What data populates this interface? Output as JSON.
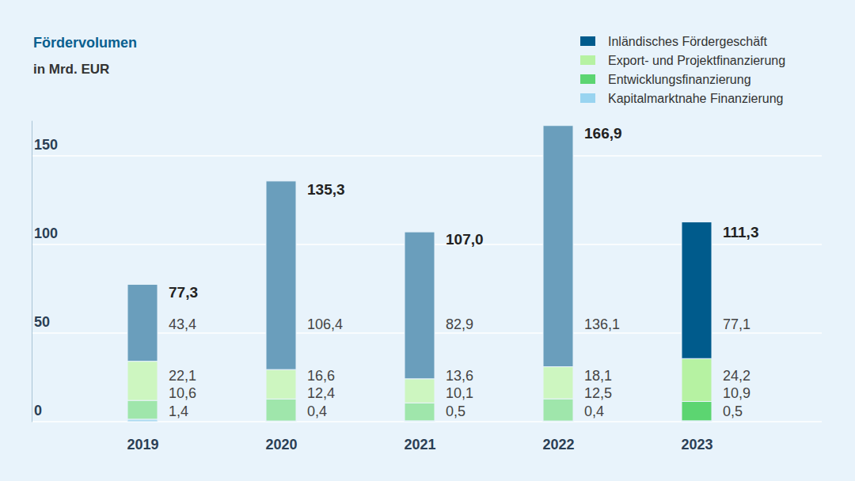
{
  "chart_data": {
    "type": "bar",
    "title": "Fördervolumen",
    "subtitle": "in Mrd. EUR",
    "categories": [
      "2019",
      "2020",
      "2021",
      "2022",
      "2023"
    ],
    "stacked": true,
    "data_labels": true,
    "grid": true,
    "legend": "top-right",
    "ylim": [
      0,
      170
    ],
    "yticks": [
      0,
      50,
      100,
      150
    ],
    "totals": [
      77.3,
      135.3,
      107.0,
      166.9,
      111.3
    ],
    "total_labels": [
      "77,3",
      "135,3",
      "107,0",
      "166,9",
      "111,3"
    ],
    "series": [
      {
        "name": "Inländisches Fördergeschäft",
        "color": "#005b8c",
        "colors": [
          "#6a9ebc",
          "#6a9ebc",
          "#6a9ebc",
          "#6a9ebc",
          "#005b8c"
        ],
        "values": [
          43.4,
          106.4,
          82.9,
          136.1,
          77.1
        ],
        "value_labels": [
          "43,4",
          "106,4",
          "82,9",
          "136,1",
          "77,1"
        ]
      },
      {
        "name": "Export- und Projektfinanzierung",
        "color": "#b6f2a2",
        "colors": [
          "#cdf6c0",
          "#cdf6c0",
          "#cdf6c0",
          "#cdf6c0",
          "#b6f2a2"
        ],
        "values": [
          22.1,
          16.6,
          13.6,
          18.1,
          24.2
        ],
        "value_labels": [
          "22,1",
          "16,6",
          "13,6",
          "18,1",
          "24,2"
        ]
      },
      {
        "name": "Entwicklungsfinanzierung",
        "color": "#5cd571",
        "colors": [
          "#9fe6ab",
          "#9fe6ab",
          "#9fe6ab",
          "#9fe6ab",
          "#5cd571"
        ],
        "values": [
          10.6,
          12.4,
          10.1,
          12.5,
          10.9
        ],
        "value_labels": [
          "10,6",
          "12,4",
          "10,1",
          "12,5",
          "10,9"
        ]
      },
      {
        "name": "Kapitalmarktnahe Finanzierung",
        "color": "#99d4f0",
        "colors": [
          "#acdaf0",
          "#acdaf0",
          "#acdaf0",
          "#acdaf0",
          "#99d4f0"
        ],
        "values": [
          1.4,
          0.4,
          0.5,
          0.4,
          0.5
        ],
        "value_labels": [
          "1,4",
          "0,4",
          "0,5",
          "0,4",
          "0,5"
        ]
      }
    ]
  }
}
